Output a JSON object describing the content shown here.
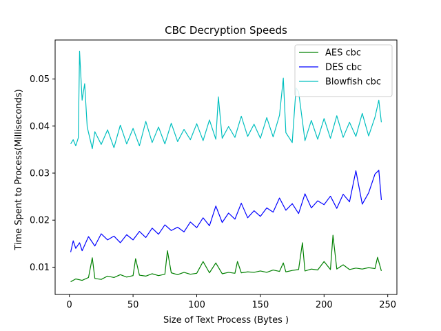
{
  "chart_data": {
    "type": "line",
    "title": "CBC Decryption Speeds",
    "xlabel": "Size of Text Process (Bytes )",
    "ylabel": "Time Spent to Process(Milliseconds)",
    "xlim": [
      -11.2,
      257.2
    ],
    "ylim": [
      0.0042,
      0.0583
    ],
    "xticks": [
      0,
      50,
      100,
      150,
      200,
      250
    ],
    "xtick_labels": [
      "0",
      "50",
      "100",
      "150",
      "200",
      "250"
    ],
    "yticks": [
      0.01,
      0.02,
      0.03,
      0.04,
      0.05
    ],
    "ytick_labels": [
      "0.01",
      "0.02",
      "0.03",
      "0.04",
      "0.05"
    ],
    "grid": false,
    "legend_position": "top-right",
    "series": [
      {
        "name": "AES  cbc",
        "color": "#008000",
        "x": [
          1,
          5,
          10,
          15,
          18,
          20,
          25,
          30,
          35,
          40,
          45,
          50,
          52,
          55,
          60,
          65,
          70,
          75,
          77,
          80,
          85,
          90,
          95,
          100,
          105,
          110,
          115,
          120,
          125,
          130,
          132,
          135,
          140,
          145,
          150,
          155,
          160,
          165,
          168,
          170,
          175,
          180,
          183,
          185,
          190,
          195,
          200,
          205,
          207,
          210,
          215,
          220,
          225,
          230,
          235,
          240,
          242,
          245
        ],
        "y": [
          0.0069,
          0.0075,
          0.0072,
          0.0078,
          0.012,
          0.0076,
          0.0074,
          0.0081,
          0.0078,
          0.0084,
          0.0079,
          0.0082,
          0.0118,
          0.0083,
          0.0081,
          0.0086,
          0.0082,
          0.0085,
          0.0135,
          0.0088,
          0.0084,
          0.0089,
          0.0085,
          0.0087,
          0.0112,
          0.0088,
          0.0109,
          0.0086,
          0.0089,
          0.0087,
          0.0112,
          0.0088,
          0.009,
          0.0089,
          0.0092,
          0.0089,
          0.0094,
          0.0091,
          0.0109,
          0.009,
          0.0093,
          0.0095,
          0.0152,
          0.0092,
          0.0096,
          0.0094,
          0.0112,
          0.0095,
          0.0168,
          0.0096,
          0.0105,
          0.0095,
          0.0098,
          0.0096,
          0.0099,
          0.0097,
          0.0121,
          0.0092
        ]
      },
      {
        "name": "DES  cbc",
        "color": "#0000ff",
        "x": [
          1,
          3,
          5,
          8,
          10,
          15,
          20,
          25,
          30,
          35,
          40,
          45,
          50,
          55,
          60,
          65,
          70,
          75,
          80,
          85,
          90,
          95,
          100,
          105,
          110,
          115,
          120,
          125,
          130,
          135,
          140,
          145,
          150,
          155,
          160,
          165,
          170,
          175,
          180,
          185,
          190,
          195,
          200,
          205,
          210,
          215,
          220,
          225,
          230,
          235,
          240,
          243,
          245
        ],
        "y": [
          0.0132,
          0.0156,
          0.014,
          0.0152,
          0.0135,
          0.0165,
          0.0145,
          0.0171,
          0.0158,
          0.0166,
          0.0152,
          0.0169,
          0.0158,
          0.0176,
          0.0163,
          0.0183,
          0.017,
          0.019,
          0.0178,
          0.0185,
          0.0175,
          0.0196,
          0.0184,
          0.0205,
          0.0188,
          0.023,
          0.0195,
          0.0215,
          0.0202,
          0.0236,
          0.0205,
          0.022,
          0.0208,
          0.0226,
          0.0217,
          0.0247,
          0.0221,
          0.0235,
          0.0214,
          0.0256,
          0.0226,
          0.0241,
          0.0233,
          0.0251,
          0.0225,
          0.0255,
          0.0239,
          0.0305,
          0.0234,
          0.0258,
          0.0298,
          0.0306,
          0.0243
        ]
      },
      {
        "name": "Blowfish  cbc",
        "color": "#00bfbf",
        "x": [
          1,
          3,
          5,
          7,
          8,
          10,
          12,
          14,
          18,
          20,
          25,
          30,
          35,
          40,
          45,
          50,
          55,
          60,
          65,
          70,
          75,
          80,
          85,
          90,
          95,
          100,
          105,
          110,
          115,
          117,
          120,
          125,
          130,
          135,
          140,
          145,
          150,
          155,
          160,
          165,
          168,
          170,
          175,
          178,
          180,
          185,
          190,
          195,
          200,
          205,
          210,
          215,
          220,
          225,
          230,
          235,
          240,
          243,
          245
        ],
        "y": [
          0.0362,
          0.0371,
          0.0358,
          0.0375,
          0.0559,
          0.0455,
          0.049,
          0.0398,
          0.0352,
          0.0388,
          0.0361,
          0.0392,
          0.0354,
          0.0402,
          0.0362,
          0.0395,
          0.0358,
          0.041,
          0.0365,
          0.0398,
          0.0362,
          0.0406,
          0.0367,
          0.0393,
          0.0371,
          0.0405,
          0.0369,
          0.0413,
          0.0372,
          0.0462,
          0.0374,
          0.0399,
          0.0376,
          0.0421,
          0.0378,
          0.0404,
          0.0374,
          0.0418,
          0.0377,
          0.0423,
          0.0502,
          0.0386,
          0.0365,
          0.0481,
          0.0473,
          0.0369,
          0.0412,
          0.0372,
          0.0416,
          0.0374,
          0.0422,
          0.0376,
          0.0408,
          0.0378,
          0.0427,
          0.0379,
          0.0419,
          0.0455,
          0.0408
        ]
      }
    ]
  }
}
